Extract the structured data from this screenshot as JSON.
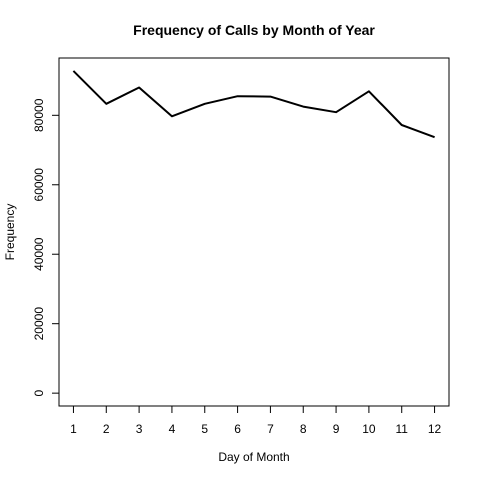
{
  "chart_data": {
    "type": "line",
    "title": "Frequency of Calls by Month of Year",
    "xlabel": "Day of Month",
    "ylabel": "Frequency",
    "x": [
      1,
      2,
      3,
      4,
      5,
      6,
      7,
      8,
      9,
      10,
      11,
      12
    ],
    "series": [
      {
        "values": [
          92800,
          83300,
          88000,
          79700,
          83300,
          85500,
          85400,
          82500,
          80900,
          86900,
          77200,
          73700
        ]
      }
    ],
    "x_ticks": [
      "1",
      "2",
      "3",
      "4",
      "5",
      "6",
      "7",
      "8",
      "9",
      "10",
      "11",
      "12"
    ],
    "y_ticks": [
      "0",
      "20000",
      "40000",
      "60000",
      "80000"
    ],
    "y_tick_values": [
      0,
      20000,
      40000,
      60000,
      80000
    ],
    "xlim": [
      0.56,
      12.44
    ],
    "ylim": [
      -3700,
      96500
    ],
    "grid": false,
    "line_color": "#000000"
  }
}
